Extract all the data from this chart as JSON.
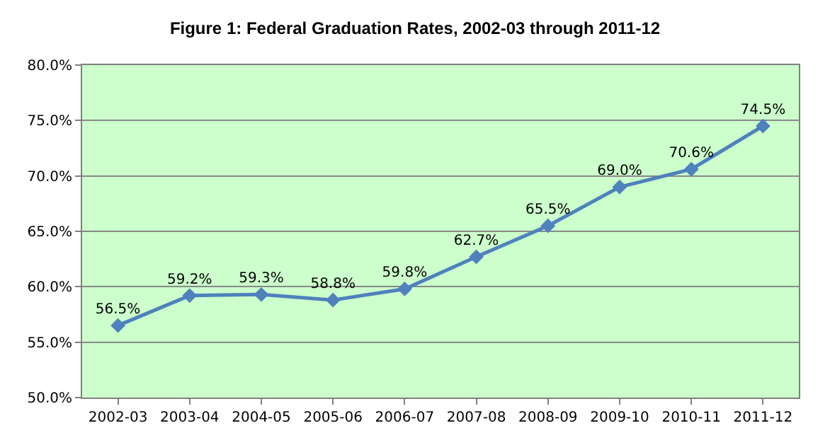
{
  "chart_data": {
    "type": "line",
    "title": "Figure 1: Federal Graduation Rates, 2002-03 through 2011-12",
    "categories": [
      "2002-03",
      "2003-04",
      "2004-05",
      "2005-06",
      "2006-07",
      "2007-08",
      "2008-09",
      "2009-10",
      "2010-11",
      "2011-12"
    ],
    "series": [
      {
        "color": "#4f81bd",
        "values": [
          56.5,
          59.2,
          59.3,
          58.8,
          59.8,
          62.7,
          65.5,
          69.0,
          70.6,
          74.5
        ],
        "value_labels": [
          "56.5%",
          "59.2%",
          "59.3%",
          "58.8%",
          "59.8%",
          "62.7%",
          "65.5%",
          "69.0%",
          "70.6%",
          "74.5%"
        ]
      }
    ],
    "ylim": [
      50,
      80
    ],
    "yticks": [
      {
        "value": 50,
        "label": "50.0%"
      },
      {
        "value": 55,
        "label": "55.0%"
      },
      {
        "value": 60,
        "label": "60.0%"
      },
      {
        "value": 65,
        "label": "65.0%"
      },
      {
        "value": 70,
        "label": "70.0%"
      },
      {
        "value": 75,
        "label": "75.0%"
      },
      {
        "value": 80,
        "label": "80.0%"
      }
    ],
    "grid": "y",
    "legend": false,
    "marker": "diamond",
    "line_style": "solid"
  }
}
